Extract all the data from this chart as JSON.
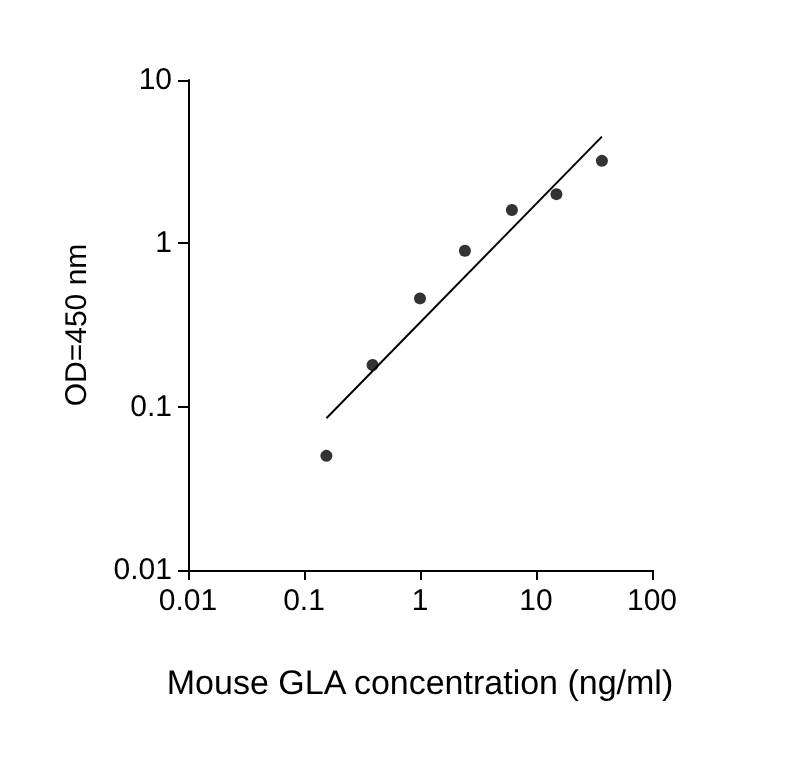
{
  "chart_data": {
    "type": "scatter",
    "xlabel": "Mouse GLA concentration (ng/ml)",
    "ylabel": "OD=450 nm",
    "log": "xy",
    "grid": false,
    "marker": "circle",
    "xlim": [
      0.01,
      100
    ],
    "xticks": [
      0.01,
      0.1,
      1,
      10,
      100
    ],
    "ylim": [
      0.01,
      10
    ],
    "yticks": [
      0.01,
      0.1,
      1,
      10
    ],
    "series": [
      {
        "color": "#000000",
        "x": [
          0.156,
          0.39,
          1,
          2.44,
          6.2,
          15,
          37
        ],
        "values": [
          0.05,
          0.18,
          0.46,
          0.9,
          1.6,
          2.0,
          3.2
        ]
      },
      {
        "type": "line",
        "color": "#000000",
        "marker": "none",
        "line_style": "solid",
        "x": [
          0.156,
          37
        ],
        "values": [
          0.085,
          4.5
        ]
      }
    ]
  }
}
